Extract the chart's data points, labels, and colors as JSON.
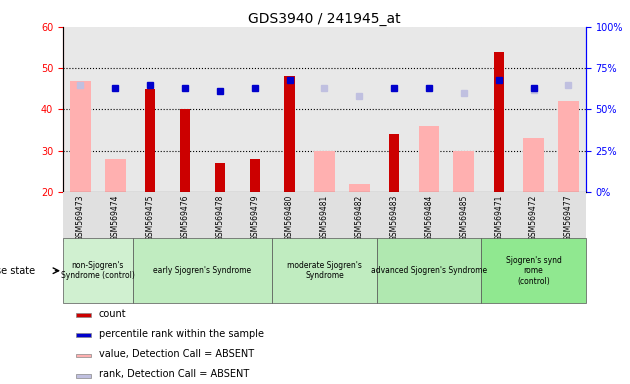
{
  "title": "GDS3940 / 241945_at",
  "samples": [
    "GSM569473",
    "GSM569474",
    "GSM569475",
    "GSM569476",
    "GSM569478",
    "GSM569479",
    "GSM569480",
    "GSM569481",
    "GSM569482",
    "GSM569483",
    "GSM569484",
    "GSM569485",
    "GSM569471",
    "GSM569472",
    "GSM569477"
  ],
  "count": [
    null,
    null,
    45,
    40,
    27,
    28,
    48,
    null,
    null,
    34,
    null,
    null,
    54,
    null,
    null
  ],
  "percentile_rank_pct": [
    null,
    63,
    65,
    63,
    61,
    63,
    68,
    null,
    null,
    63,
    63,
    null,
    68,
    63,
    null
  ],
  "value_absent": [
    47,
    28,
    null,
    null,
    null,
    null,
    null,
    30,
    22,
    null,
    36,
    30,
    null,
    33,
    42
  ],
  "rank_absent_pct": [
    65,
    null,
    null,
    null,
    null,
    null,
    null,
    63,
    58,
    null,
    null,
    60,
    null,
    62,
    65
  ],
  "ylim_left": [
    20,
    60
  ],
  "ylim_right": [
    0,
    100
  ],
  "yticks_left": [
    20,
    30,
    40,
    50,
    60
  ],
  "yticks_right": [
    0,
    25,
    50,
    75,
    100
  ],
  "color_count": "#cc0000",
  "color_percentile": "#0000cc",
  "color_value_absent": "#ffb0b0",
  "color_rank_absent": "#c0c0e0",
  "disease_groups": [
    {
      "label": "non-Sjogren's\nSyndrome (control)",
      "start": 0,
      "end": 1,
      "color": "#d0f0d0"
    },
    {
      "label": "early Sjogren's Syndrome",
      "start": 2,
      "end": 5,
      "color": "#c0ecc0"
    },
    {
      "label": "moderate Sjogren's\nSyndrome",
      "start": 6,
      "end": 8,
      "color": "#c0ecc0"
    },
    {
      "label": "advanced Sjogren's Syndrome",
      "start": 9,
      "end": 11,
      "color": "#b0e8b0"
    },
    {
      "label": "Sjogren's synd\nrome\n(control)",
      "start": 12,
      "end": 14,
      "color": "#90e890"
    }
  ],
  "legend_items": [
    {
      "label": "count",
      "color": "#cc0000"
    },
    {
      "label": "percentile rank within the sample",
      "color": "#0000cc"
    },
    {
      "label": "value, Detection Call = ABSENT",
      "color": "#ffb0b0"
    },
    {
      "label": "rank, Detection Call = ABSENT",
      "color": "#c0c0e0"
    }
  ]
}
